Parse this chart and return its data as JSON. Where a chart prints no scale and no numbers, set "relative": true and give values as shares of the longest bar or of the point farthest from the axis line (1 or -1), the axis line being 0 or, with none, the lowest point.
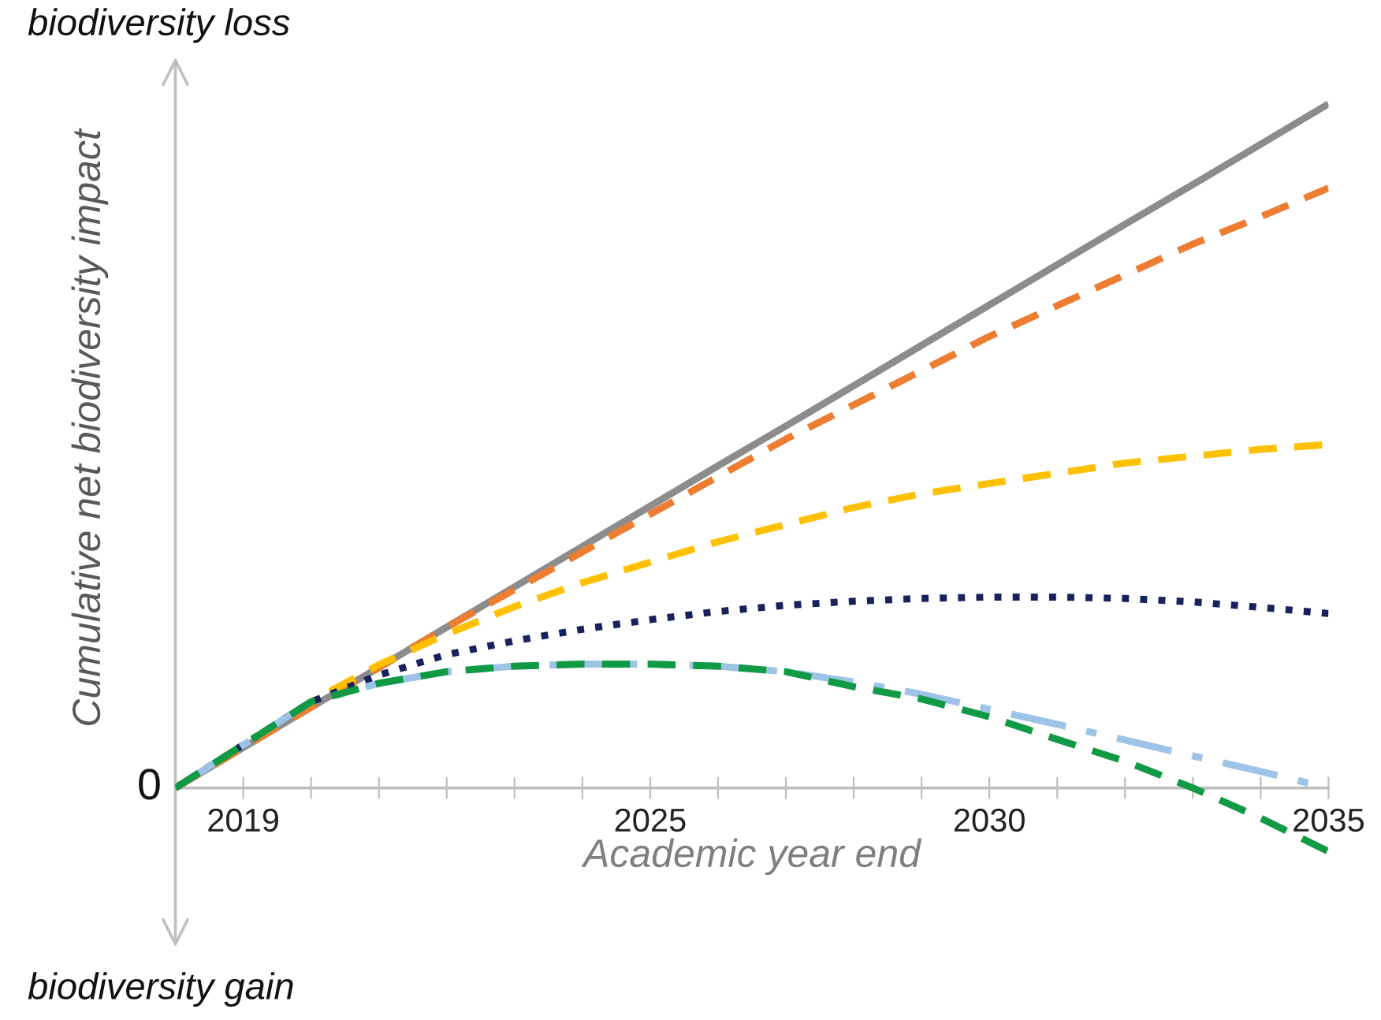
{
  "chart_data": {
    "type": "line",
    "relative": true,
    "xlabel": "Academic year end",
    "ylabel": "Cumulative net biodiversity impact",
    "annotations": [
      "biodiversity loss",
      "biodiversity gain",
      "0"
    ],
    "x": [
      2018,
      2019,
      2020,
      2021,
      2022,
      2023,
      2024,
      2025,
      2026,
      2027,
      2028,
      2029,
      2030,
      2031,
      2032,
      2033,
      2034,
      2035
    ],
    "xlim": [
      2018,
      2035
    ],
    "xticks": [
      {
        "value": 2018,
        "label": null
      },
      2019,
      {
        "value": 2020,
        "label": null
      },
      {
        "value": 2021,
        "label": null
      },
      {
        "value": 2022,
        "label": null
      },
      {
        "value": 2023,
        "label": null
      },
      {
        "value": 2024,
        "label": null
      },
      2025,
      {
        "value": 2026,
        "label": null
      },
      {
        "value": 2027,
        "label": null
      },
      {
        "value": 2028,
        "label": null
      },
      {
        "value": 2029,
        "label": null
      },
      2030,
      {
        "value": 2031,
        "label": null
      },
      {
        "value": 2032,
        "label": null
      },
      {
        "value": 2033,
        "label": null
      },
      {
        "value": 2034,
        "label": null
      },
      2035
    ],
    "grid": false,
    "legend": false,
    "marker": "none",
    "series": [
      {
        "color": "#8c8c8c",
        "line_style": "solid",
        "values": [
          0,
          0.059,
          0.118,
          0.176,
          0.235,
          0.294,
          0.353,
          0.412,
          0.471,
          0.529,
          0.588,
          0.647,
          0.706,
          0.765,
          0.824,
          0.882,
          0.941,
          1.0
        ]
      },
      {
        "color": "#ed7d31",
        "line_style": "dashed",
        "values": [
          0,
          0.059,
          0.118,
          0.176,
          0.235,
          0.29,
          0.345,
          0.4,
          0.455,
          0.51,
          0.56,
          0.61,
          0.66,
          0.705,
          0.75,
          0.795,
          0.835,
          0.877
        ]
      },
      {
        "color": "#ffc000",
        "line_style": "dashed",
        "values": [
          0,
          0.063,
          0.126,
          0.18,
          0.225,
          0.265,
          0.3,
          0.33,
          0.36,
          0.385,
          0.41,
          0.43,
          0.445,
          0.46,
          0.475,
          0.485,
          0.495,
          0.502
        ]
      },
      {
        "color": "#17215c",
        "line_style": "dotted",
        "values": [
          0,
          0.063,
          0.126,
          0.165,
          0.195,
          0.215,
          0.232,
          0.246,
          0.258,
          0.267,
          0.273,
          0.277,
          0.279,
          0.279,
          0.277,
          0.272,
          0.264,
          0.255
        ]
      },
      {
        "color": "#9dc3e6",
        "line_style": "dashdot",
        "values": [
          0,
          0.063,
          0.126,
          0.153,
          0.17,
          0.178,
          0.181,
          0.181,
          0.178,
          0.17,
          0.155,
          0.137,
          0.115,
          0.093,
          0.07,
          0.047,
          0.024,
          0
        ]
      },
      {
        "color": "#119a45",
        "line_style": "dashed",
        "values": [
          0,
          0.063,
          0.126,
          0.153,
          0.17,
          0.178,
          0.181,
          0.181,
          0.178,
          0.17,
          0.148,
          0.13,
          0.104,
          0.071,
          0.039,
          0,
          -0.044,
          -0.093
        ]
      }
    ]
  }
}
